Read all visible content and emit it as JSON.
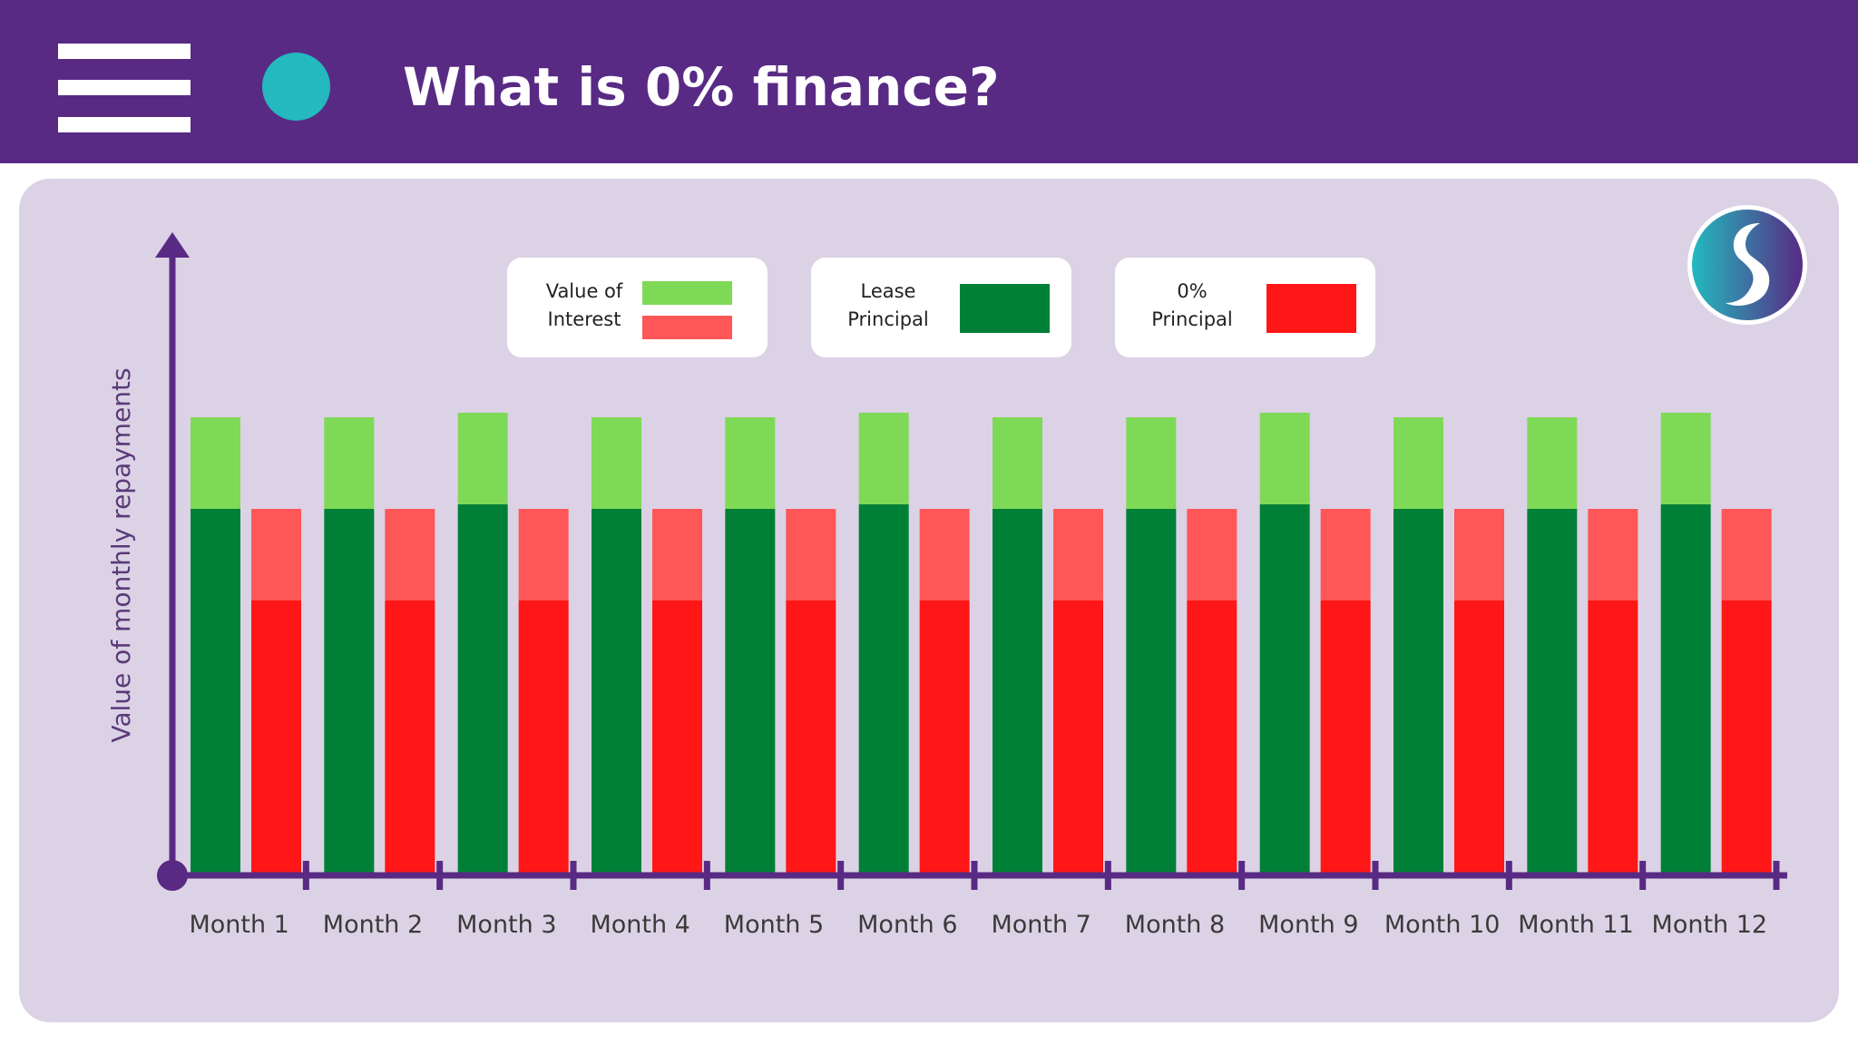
{
  "header": {
    "title": "What is 0% finance?",
    "menu_icon": "hamburger-menu-icon",
    "dot_color": "#23b9bf",
    "background": "#582a84"
  },
  "logo": {
    "icon": "s-logo-icon"
  },
  "legend": [
    {
      "label": "Value of\nInterest",
      "colors": [
        "#7ed957",
        "#ff5757"
      ]
    },
    {
      "label": "Lease\nPrincipal",
      "colors": [
        "#008037"
      ]
    },
    {
      "label": "0%\nPrincipal",
      "colors": [
        "#ff1616"
      ]
    }
  ],
  "chart_data": {
    "type": "bar",
    "stacked": true,
    "ylabel": "Value of monthly repayments",
    "xlabel": "",
    "categories": [
      "Month 1",
      "Month 2",
      "Month 3",
      "Month 4",
      "Month 5",
      "Month 6",
      "Month 7",
      "Month 8",
      "Month 9",
      "Month 10",
      "Month 11",
      "Month 12"
    ],
    "ylim": [
      0,
      100
    ],
    "grid": false,
    "series": [
      {
        "stack": "lease",
        "color": "#008037",
        "values": [
          80,
          80,
          81,
          80,
          80,
          81,
          80,
          80,
          81,
          80,
          80,
          81
        ]
      },
      {
        "stack": "lease",
        "color": "#7ed957",
        "values": [
          20,
          20,
          20,
          20,
          20,
          20,
          20,
          20,
          20,
          20,
          20,
          20
        ]
      },
      {
        "stack": "zero",
        "color": "#ff1616",
        "values": [
          60,
          60,
          60,
          60,
          60,
          60,
          60,
          60,
          60,
          60,
          60,
          60
        ]
      },
      {
        "stack": "zero",
        "color": "#ff5757",
        "values": [
          20,
          20,
          20,
          20,
          20,
          20,
          20,
          20,
          20,
          20,
          20,
          20
        ]
      }
    ]
  }
}
